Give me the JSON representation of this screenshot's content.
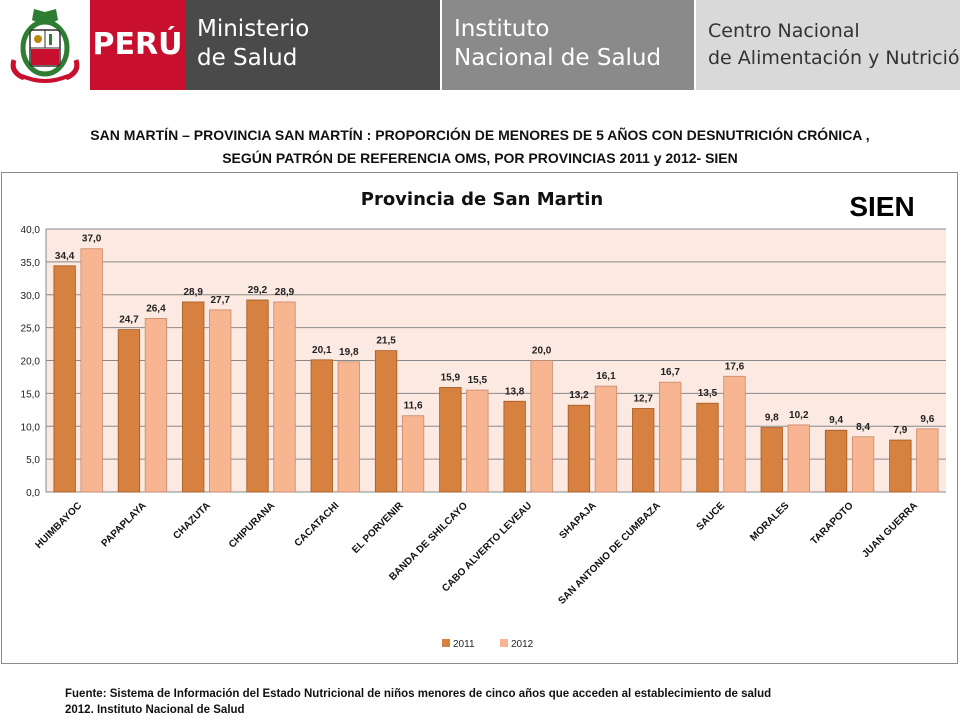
{
  "header": {
    "crest_text": "REPÚBLICA DEL PERÚ",
    "country": "PERÚ",
    "ministry_line1": "Ministerio",
    "ministry_line2": "de Salud",
    "institute_line1": "Instituto",
    "institute_line2": "Nacional de Salud",
    "center_line1": "Centro Nacional",
    "center_line2": "de Alimentación y Nutrición",
    "colors": {
      "red": "#c8102e",
      "dark_gray": "#4a4a4a",
      "mid_gray": "#8a8a8a",
      "light_gray": "#d9d9d9"
    }
  },
  "page_title_line1": "SAN MARTÍN – PROVINCIA SAN MARTÍN : PROPORCIÓN DE MENORES DE 5 AÑOS CON DESNUTRICIÓN CRÓNICA ,",
  "page_title_line2": "SEGÚN PATRÓN DE REFERENCIA OMS,  POR PROVINCIAS   2011 y 2012- SIEN",
  "source_line1": "Fuente: Sistema de Información del Estado Nutricional de niños menores de cinco años que acceden al establecimiento de salud",
  "source_line2": "2012.  Instituto Nacional de Salud",
  "chart_data": {
    "type": "bar",
    "title": "Provincia de San Martin",
    "badge": "SIEN",
    "categories": [
      "HUIMBAYOC",
      "PAPAPLAYA",
      "CHAZUTA",
      "CHIPURANA",
      "CACATACHI",
      "EL PORVENIR",
      "BANDA DE SHILCAYO",
      "CABO ALVERTO LEVEAU",
      "SHAPAJA",
      "SAN ANTONIO DE CUMBAZA",
      "SAUCE",
      "MORALES",
      "TARAPOTO",
      "JUAN GUERRA"
    ],
    "series": [
      {
        "name": "2011",
        "color": "#d6813f",
        "values": [
          34.4,
          24.7,
          28.9,
          29.2,
          20.1,
          21.5,
          15.9,
          13.8,
          13.2,
          12.7,
          13.5,
          9.8,
          9.4,
          7.9
        ],
        "labels": [
          "34,4",
          "24,7",
          "28,9",
          "29,2",
          "20,1",
          "21,5",
          "15,9",
          "13,8",
          "13,2",
          "12,7",
          "13,5",
          "9,8",
          "9,4",
          "7,9"
        ]
      },
      {
        "name": "2012",
        "color": "#f7b591",
        "values": [
          37.0,
          26.4,
          27.7,
          28.9,
          19.8,
          11.6,
          15.5,
          20.0,
          16.1,
          16.7,
          17.6,
          10.2,
          8.4,
          9.6
        ],
        "labels": [
          "37,0",
          "26,4",
          "27,7",
          "28,9",
          "19,8",
          "11,6",
          "15,5",
          "20,0",
          "16,1",
          "16,7",
          "17,6",
          "10,2",
          "8,4",
          "9,6"
        ]
      }
    ],
    "ylim": [
      0,
      40
    ],
    "yticks": [
      "0,0",
      "5,0",
      "10,0",
      "15,0",
      "20,0",
      "25,0",
      "30,0",
      "35,0",
      "40,0"
    ],
    "ytick_values": [
      0,
      5,
      10,
      15,
      20,
      25,
      30,
      35,
      40
    ],
    "plot_background": "#fbe9e2",
    "grid": true,
    "legend_position": "bottom"
  }
}
